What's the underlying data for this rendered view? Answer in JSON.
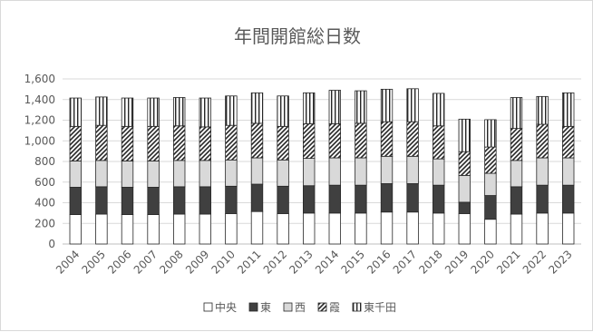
{
  "chart_data": {
    "type": "bar",
    "stacked": true,
    "title": "年間開館総日数",
    "categories": [
      "2004",
      "2005",
      "2006",
      "2007",
      "2008",
      "2009",
      "2010",
      "2011",
      "2012",
      "2013",
      "2014",
      "2015",
      "2016",
      "2017",
      "2018",
      "2019",
      "2020",
      "2021",
      "2022",
      "2023"
    ],
    "ylim": [
      0,
      1600
    ],
    "yticks": [
      "0",
      "200",
      "400",
      "600",
      "800",
      "1,000",
      "1,200",
      "1,400",
      "1,600"
    ],
    "grid": true,
    "legend_position": "bottom",
    "series": [
      {
        "name": "中央",
        "pattern": "white",
        "values": [
          285,
          290,
          285,
          285,
          290,
          290,
          295,
          315,
          295,
          300,
          300,
          300,
          310,
          310,
          300,
          295,
          240,
          290,
          300,
          300
        ]
      },
      {
        "name": "東",
        "pattern": "solid-dark",
        "values": [
          265,
          265,
          265,
          265,
          265,
          265,
          265,
          265,
          265,
          265,
          270,
          270,
          275,
          275,
          270,
          110,
          230,
          265,
          270,
          270
        ]
      },
      {
        "name": "西",
        "pattern": "light-gray",
        "values": [
          255,
          255,
          255,
          255,
          255,
          255,
          255,
          255,
          255,
          265,
          265,
          265,
          265,
          265,
          255,
          260,
          215,
          255,
          265,
          265
        ]
      },
      {
        "name": "霞",
        "pattern": "diagonal-hatch",
        "values": [
          335,
          340,
          335,
          335,
          335,
          325,
          335,
          335,
          325,
          335,
          330,
          335,
          335,
          335,
          320,
          230,
          255,
          310,
          325,
          305
        ]
      },
      {
        "name": "東千田",
        "pattern": "vertical-lines",
        "values": [
          275,
          275,
          275,
          275,
          275,
          280,
          285,
          295,
          295,
          300,
          325,
          315,
          315,
          320,
          315,
          315,
          265,
          300,
          270,
          325
        ]
      }
    ]
  }
}
